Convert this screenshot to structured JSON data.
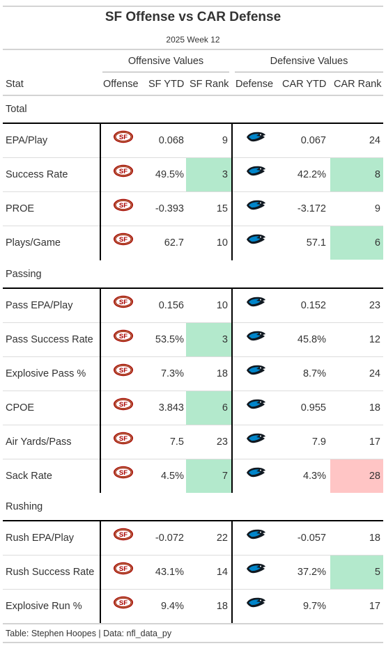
{
  "header": {
    "title": "SF Offense vs CAR Defense",
    "subtitle": "2025 Week 12"
  },
  "spanners": {
    "offense": "Offensive Values",
    "defense": "Defensive Values"
  },
  "columns": {
    "stat": "Stat",
    "offense": "Offense",
    "sf_ytd": "SF YTD",
    "sf_rank": "SF Rank",
    "defense": "Defense",
    "car_ytd": "CAR YTD",
    "car_rank": "CAR Rank"
  },
  "icons": {
    "offense_logo": "49ers-helmet-logo-icon",
    "defense_logo": "panthers-logo-icon"
  },
  "colors": {
    "highlight_good": "#b3e9cc",
    "highlight_bad": "#ffc5c5",
    "niners_red": "#aa0000",
    "niners_gold": "#b3995d",
    "panthers_blue": "#0085ca",
    "panthers_black": "#101820"
  },
  "groups": [
    {
      "label": "Total",
      "rows": [
        {
          "stat": "EPA/Play",
          "sf_ytd": "0.068",
          "sf_rank": "9",
          "sf_hl": "",
          "car_ytd": "0.067",
          "car_rank": "24",
          "car_hl": ""
        },
        {
          "stat": "Success Rate",
          "sf_ytd": "49.5%",
          "sf_rank": "3",
          "sf_hl": "good",
          "car_ytd": "42.2%",
          "car_rank": "8",
          "car_hl": "good"
        },
        {
          "stat": "PROE",
          "sf_ytd": "-0.393",
          "sf_rank": "15",
          "sf_hl": "",
          "car_ytd": "-3.172",
          "car_rank": "9",
          "car_hl": ""
        },
        {
          "stat": "Plays/Game",
          "sf_ytd": "62.7",
          "sf_rank": "10",
          "sf_hl": "",
          "car_ytd": "57.1",
          "car_rank": "6",
          "car_hl": "good"
        }
      ]
    },
    {
      "label": "Passing",
      "rows": [
        {
          "stat": "Pass EPA/Play",
          "sf_ytd": "0.156",
          "sf_rank": "10",
          "sf_hl": "",
          "car_ytd": "0.152",
          "car_rank": "23",
          "car_hl": ""
        },
        {
          "stat": "Pass Success Rate",
          "sf_ytd": "53.5%",
          "sf_rank": "3",
          "sf_hl": "good",
          "car_ytd": "45.8%",
          "car_rank": "12",
          "car_hl": ""
        },
        {
          "stat": "Explosive Pass %",
          "sf_ytd": "7.3%",
          "sf_rank": "18",
          "sf_hl": "",
          "car_ytd": "8.7%",
          "car_rank": "24",
          "car_hl": ""
        },
        {
          "stat": "CPOE",
          "sf_ytd": "3.843",
          "sf_rank": "6",
          "sf_hl": "good",
          "car_ytd": "0.955",
          "car_rank": "18",
          "car_hl": ""
        },
        {
          "stat": "Air Yards/Pass",
          "sf_ytd": "7.5",
          "sf_rank": "23",
          "sf_hl": "",
          "car_ytd": "7.9",
          "car_rank": "17",
          "car_hl": ""
        },
        {
          "stat": "Sack Rate",
          "sf_ytd": "4.5%",
          "sf_rank": "7",
          "sf_hl": "good",
          "car_ytd": "4.3%",
          "car_rank": "28",
          "car_hl": "bad"
        }
      ]
    },
    {
      "label": "Rushing",
      "rows": [
        {
          "stat": "Rush EPA/Play",
          "sf_ytd": "-0.072",
          "sf_rank": "22",
          "sf_hl": "",
          "car_ytd": "-0.057",
          "car_rank": "18",
          "car_hl": ""
        },
        {
          "stat": "Rush Success Rate",
          "sf_ytd": "43.1%",
          "sf_rank": "14",
          "sf_hl": "",
          "car_ytd": "37.2%",
          "car_rank": "5",
          "car_hl": "good"
        },
        {
          "stat": "Explosive Run %",
          "sf_ytd": "9.4%",
          "sf_rank": "18",
          "sf_hl": "",
          "car_ytd": "9.7%",
          "car_rank": "17",
          "car_hl": ""
        }
      ]
    }
  ],
  "footer": "Table: Stephen Hoopes | Data: nfl_data_py"
}
